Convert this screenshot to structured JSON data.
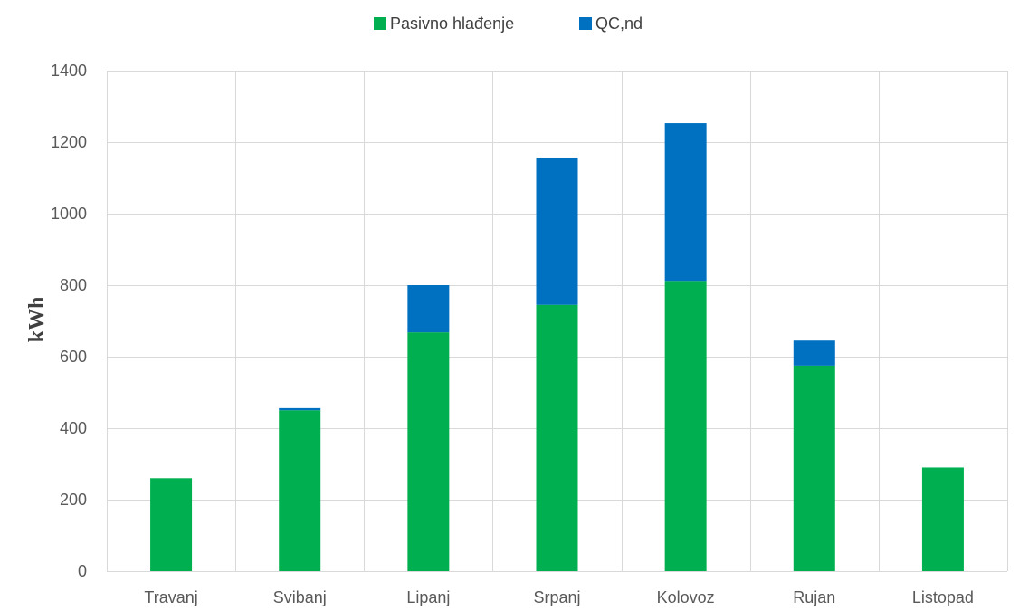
{
  "chart_data": {
    "type": "bar",
    "stacked": true,
    "categories": [
      "Travanj",
      "Svibanj",
      "Lipanj",
      "Srpanj",
      "Kolovoz",
      "Rujan",
      "Listopad"
    ],
    "series": [
      {
        "name": "Pasivno hlađenje",
        "color": "#00b050",
        "values": [
          260,
          450,
          668,
          745,
          812,
          575,
          290
        ]
      },
      {
        "name": "QC,nd",
        "color": "#0070c0",
        "values": [
          0,
          6,
          132,
          412,
          441,
          70,
          0
        ]
      }
    ],
    "ylabel": "kWh",
    "ylim": [
      0,
      1400
    ],
    "yticks": [
      0,
      200,
      400,
      600,
      800,
      1000,
      1200,
      1400
    ],
    "grid": true,
    "legend_position": "top-center",
    "colors": {
      "gridline": "#d9d9d9",
      "axis_text": "#595959"
    }
  }
}
